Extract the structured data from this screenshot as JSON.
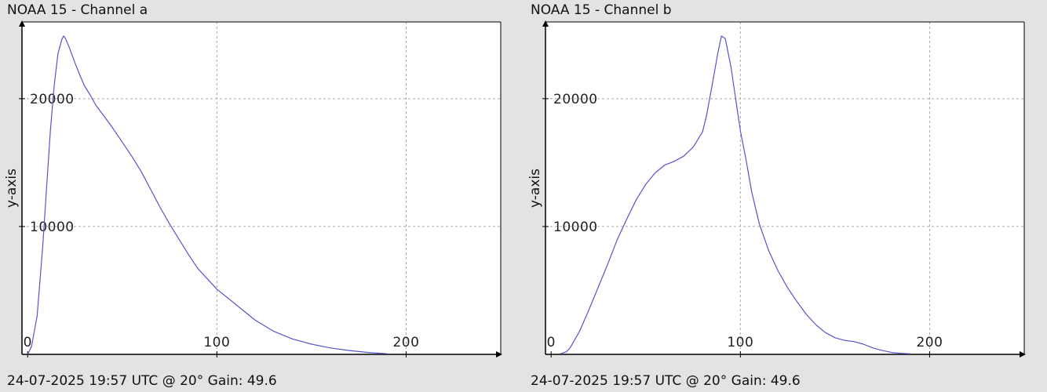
{
  "panels": [
    {
      "title": "NOAA 15 - Channel a",
      "footer": "24-07-2025 19:57 UTC @ 20° Gain: 49.6"
    },
    {
      "title": "NOAA 15 - Channel b",
      "footer": "24-07-2025 19:57 UTC @ 20° Gain: 49.6"
    }
  ],
  "colors": {
    "line": "#5555cc",
    "grid": "#aaaaaa",
    "axis": "#000000",
    "plot_bg": "#ffffff",
    "page_bg": "#e3e3e3"
  },
  "chart_data": [
    {
      "type": "line",
      "title": "NOAA 15 - Channel a",
      "xlabel": "",
      "ylabel": "y-axis",
      "xlim": [
        -3,
        250
      ],
      "ylim": [
        0,
        26000
      ],
      "x_ticks": [
        "0",
        "100",
        "200"
      ],
      "y_ticks": [
        "10000",
        "20000"
      ],
      "grid": true,
      "series": [
        {
          "x": [
            0,
            2,
            5,
            8,
            10,
            12,
            14,
            16,
            18,
            19,
            20,
            22,
            25,
            28,
            30,
            33,
            36,
            40,
            45,
            50,
            55,
            60,
            65,
            70,
            75,
            80,
            85,
            90,
            95,
            100,
            110,
            120,
            130,
            140,
            150,
            160,
            170,
            180,
            190
          ],
          "y": [
            0,
            600,
            3000,
            8500,
            13000,
            17500,
            21000,
            23500,
            24600,
            24900,
            24700,
            24000,
            22800,
            21700,
            21000,
            20300,
            19500,
            18700,
            17700,
            16600,
            15500,
            14300,
            12900,
            11500,
            10200,
            9000,
            7800,
            6700,
            5900,
            5100,
            3900,
            2700,
            1800,
            1200,
            800,
            500,
            300,
            150,
            50
          ]
        }
      ]
    },
    {
      "type": "line",
      "title": "NOAA 15 - Channel b",
      "xlabel": "",
      "ylabel": "y-axis",
      "xlim": [
        -3,
        250
      ],
      "ylim": [
        0,
        26000
      ],
      "x_ticks": [
        "0",
        "100",
        "200"
      ],
      "y_ticks": [
        "10000",
        "20000"
      ],
      "grid": true,
      "series": [
        {
          "x": [
            5,
            8,
            10,
            15,
            20,
            25,
            30,
            35,
            40,
            45,
            50,
            55,
            60,
            65,
            70,
            75,
            80,
            82,
            85,
            88,
            90,
            92,
            95,
            98,
            100,
            103,
            106,
            110,
            115,
            120,
            125,
            130,
            135,
            140,
            145,
            150,
            155,
            160,
            165,
            170,
            175,
            180,
            185,
            190
          ],
          "y": [
            50,
            200,
            500,
            1800,
            3500,
            5300,
            7100,
            9000,
            10600,
            12100,
            13300,
            14200,
            14800,
            15100,
            15500,
            16200,
            17400,
            18600,
            21000,
            23500,
            24900,
            24700,
            22500,
            19500,
            17500,
            15200,
            12700,
            10200,
            8100,
            6500,
            5200,
            4100,
            3100,
            2300,
            1700,
            1300,
            1100,
            1000,
            800,
            500,
            300,
            150,
            80,
            40
          ]
        }
      ]
    }
  ]
}
